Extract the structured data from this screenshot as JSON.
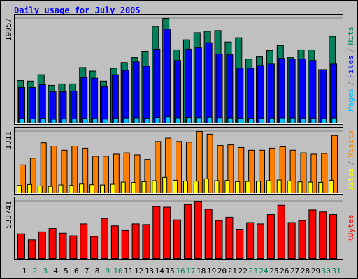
{
  "title": "Daily usage for July 2005",
  "chart_data": [
    {
      "type": "bar",
      "series": [
        {
          "name": "Hits",
          "color": "#00805c",
          "values": [
            7776,
            7646,
            8813,
            6869,
            7128,
            7128,
            10109,
            9461,
            7646,
            9979,
            11016,
            11923,
            13090,
            17626,
            19057,
            13349,
            15163,
            16459,
            16718,
            16848,
            14774,
            15552,
            11664,
            12053,
            13219,
            14126,
            11923,
            13349,
            13349,
            9720,
            15811
          ]
        },
        {
          "name": "Files",
          "color": "#0000ff",
          "values": [
            6480,
            6480,
            6998,
            5702,
            5702,
            5832,
            8294,
            8165,
            6610,
            8813,
            9590,
            11146,
            10368,
            13478,
            17107,
            11405,
            13478,
            13738,
            14645,
            12571,
            12442,
            9979,
            9979,
            10498,
            10757,
            11794,
            11664,
            11664,
            11405,
            9720,
            10757
          ]
        },
        {
          "name": "Pages",
          "color": "#00c0ff",
          "values": [
            820,
            760,
            900,
            700,
            740,
            760,
            880,
            850,
            720,
            910,
            930,
            960,
            900,
            1010,
            1120,
            960,
            1010,
            990,
            1050,
            980,
            940,
            880,
            860,
            900,
            920,
            950,
            930,
            900,
            910,
            820,
            940
          ]
        }
      ],
      "ylim": [
        0,
        19057
      ],
      "yticks": [
        19057
      ],
      "legend_separator": "/"
    },
    {
      "type": "bar",
      "series": [
        {
          "name": "Visits",
          "color": "#ff8000",
          "values": [
            599,
            741,
            1069,
            998,
            912,
            998,
            955,
            784,
            784,
            827,
            855,
            812,
            713,
            1097,
            1169,
            1097,
            1083,
            1311,
            1254,
            1012,
            1026,
            969,
            912,
            912,
            955,
            983,
            912,
            855,
            827,
            841,
            1226
          ]
        },
        {
          "name": "Sites",
          "color": "#ffff00",
          "values": [
            160,
            180,
            150,
            140,
            170,
            160,
            190,
            175,
            170,
            185,
            230,
            220,
            240,
            260,
            330,
            270,
            255,
            250,
            300,
            260,
            265,
            240,
            245,
            250,
            260,
            275,
            255,
            235,
            230,
            225,
            270
          ]
        }
      ],
      "ylim": [
        0,
        1311
      ],
      "yticks": [
        1311
      ],
      "legend_separator": "/"
    },
    {
      "type": "bar",
      "categories": [
        "1",
        "2",
        "3",
        "4",
        "5",
        "6",
        "7",
        "8",
        "9",
        "10",
        "11",
        "12",
        "13",
        "14",
        "15",
        "16",
        "17",
        "18",
        "19",
        "20",
        "21",
        "22",
        "23",
        "24",
        "25",
        "26",
        "27",
        "28",
        "29",
        "30",
        "31"
      ],
      "category_colors": [
        "#000000",
        "#00805c",
        "#00805c",
        "#000000",
        "#000000",
        "#000000",
        "#000000",
        "#000000",
        "#00805c",
        "#00805c",
        "#000000",
        "#000000",
        "#000000",
        "#000000",
        "#000000",
        "#00805c",
        "#00805c",
        "#000000",
        "#000000",
        "#000000",
        "#000000",
        "#000000",
        "#00805c",
        "#00805c",
        "#000000",
        "#000000",
        "#000000",
        "#000000",
        "#000000",
        "#00805c",
        "#00805c"
      ],
      "series": [
        {
          "name": "KBytes",
          "color": "#ff0000",
          "values": [
            229633,
            173776,
            248252,
            279284,
            235839,
            211014,
            322728,
            204808,
            372378,
            304109,
            260665,
            322728,
            316521,
            484091,
            477885,
            359965,
            502710,
            533741,
            459266,
            353759,
            384791,
            266871,
            335140,
            322728,
            409616,
            496504,
            335140,
            353759,
            453060,
            434441,
            409616
          ]
        }
      ],
      "ylim": [
        0,
        533741
      ],
      "yticks": [
        533741
      ]
    }
  ]
}
